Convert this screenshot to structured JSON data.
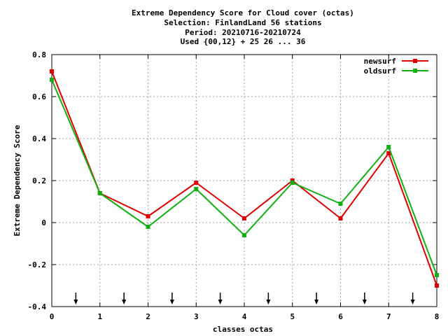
{
  "chart_data": {
    "type": "line",
    "title_lines": [
      "Extreme Dependency Score  for Cloud cover (octas)",
      "Selection: FinlandLand     56 stations",
      "Period: 20210716-20210724",
      "Used {00,12} + 25 26 ... 36"
    ],
    "xlabel": "classes octas",
    "ylabel": "Extreme Dependency Score",
    "xlim": [
      0,
      8
    ],
    "ylim": [
      -0.4,
      0.8
    ],
    "x_ticks": [
      "0",
      "1",
      "2",
      "3",
      "4",
      "5",
      "6",
      "7",
      "8"
    ],
    "y_ticks": [
      "-0.4",
      "-0.2",
      "0",
      "0.2",
      "0.4",
      "0.6",
      "0.8"
    ],
    "grid": true,
    "legend_position": "top-right",
    "x": [
      0,
      1,
      2,
      3,
      4,
      5,
      6,
      7,
      8
    ],
    "series": [
      {
        "name": "newsurf",
        "color": "#e00000",
        "values": [
          0.72,
          0.14,
          0.03,
          0.19,
          0.02,
          0.2,
          0.02,
          0.33,
          -0.3
        ]
      },
      {
        "name": "oldsurf",
        "color": "#10b010",
        "values": [
          0.68,
          0.14,
          -0.02,
          0.16,
          -0.06,
          0.19,
          0.09,
          0.36,
          -0.25
        ]
      }
    ],
    "arrow_markers_x": [
      0.5,
      1.5,
      2.5,
      3.5,
      4.5,
      5.5,
      6.5,
      7.5
    ]
  }
}
